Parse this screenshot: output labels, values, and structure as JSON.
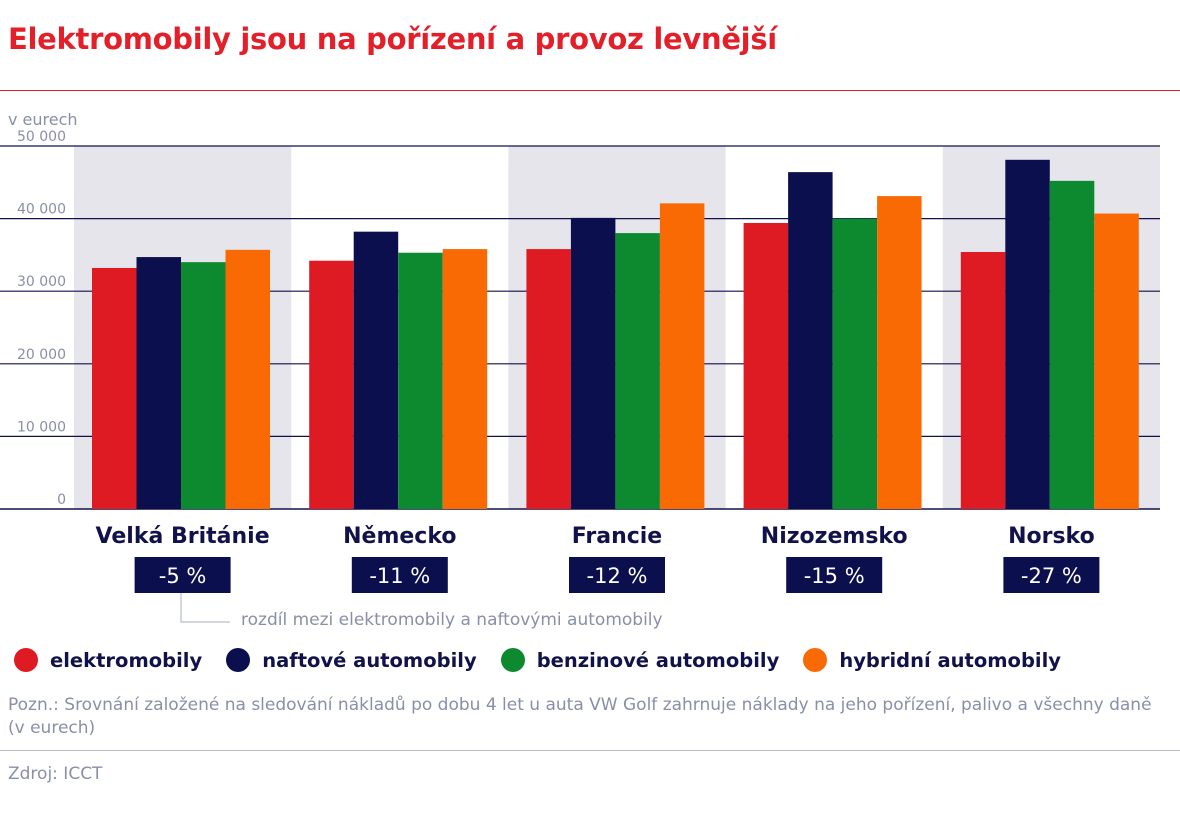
{
  "title": "Elektromobily jsou na pořízení a provoz levnější",
  "unit_label": "v eurech",
  "difference_note": "rozdíl mezi elektromobily a naftovými automobily",
  "footnote": "Pozn.: Srovnání založené na sledování nákladů po dobu 4 let u auta VW Golf zahrnuje náklady na jeho pořízení, palivo a všechny daně (v eurech)",
  "source": "Zdroj: ICCT",
  "colors": {
    "title": "#e3202a",
    "text": "#12124a",
    "muted": "#8a8fa8",
    "band": "#e6e5ec"
  },
  "chart_data": {
    "type": "bar",
    "ylim": [
      0,
      50000
    ],
    "yticks": [
      0,
      10000,
      20000,
      30000,
      40000,
      50000
    ],
    "ytick_labels": [
      "0",
      "10 000",
      "20 000",
      "30 000",
      "40 000",
      "50 000"
    ],
    "grid": true,
    "legend_position": "bottom",
    "categories": [
      "Velká Británie",
      "Německo",
      "Francie",
      "Nizozemsko",
      "Norsko"
    ],
    "differences": [
      "-5 %",
      "-11 %",
      "-12 %",
      "-15 %",
      "-27 %"
    ],
    "series": [
      {
        "name": "elektromobily",
        "color": "#de1b22",
        "values": [
          33200,
          34200,
          35800,
          39400,
          35400
        ]
      },
      {
        "name": "naftové automobily",
        "color": "#0c0f4e",
        "values": [
          34700,
          38200,
          40100,
          46400,
          48100
        ]
      },
      {
        "name": "benzinové automobily",
        "color": "#0d8a2f",
        "values": [
          34000,
          35300,
          38000,
          40000,
          45200
        ]
      },
      {
        "name": "hybridní automobily",
        "color": "#f96a05",
        "values": [
          35700,
          35800,
          42100,
          43100,
          40700
        ]
      }
    ]
  }
}
